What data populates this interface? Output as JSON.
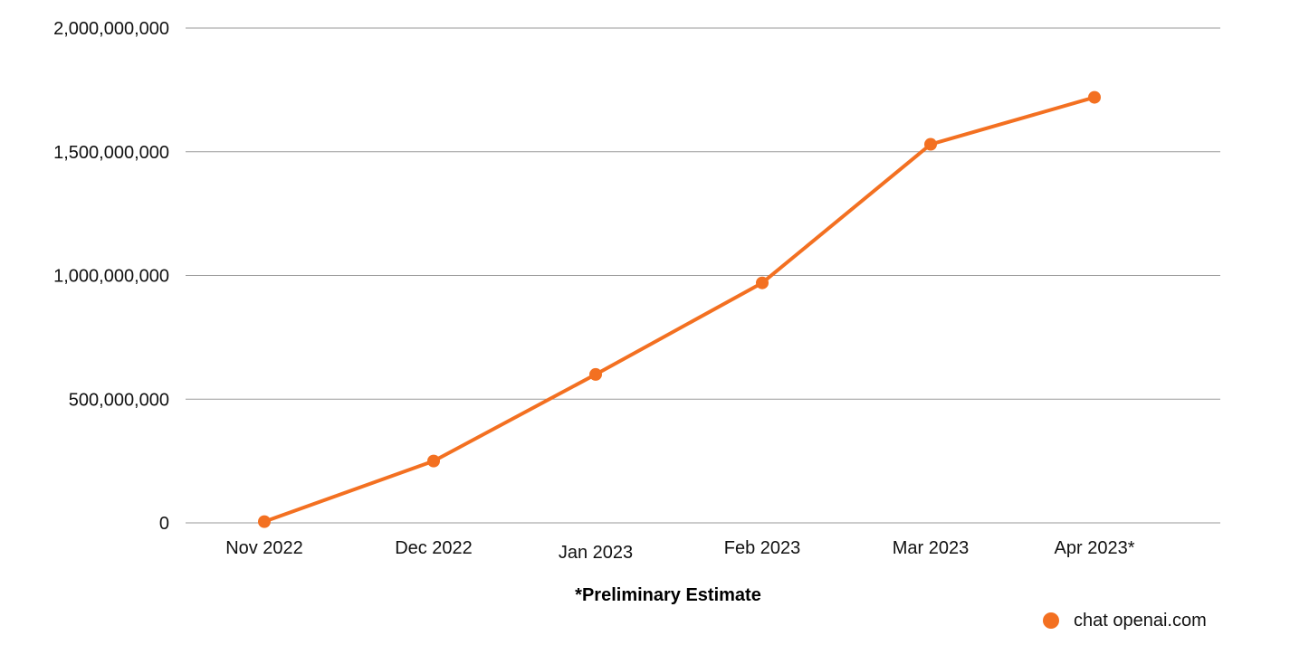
{
  "chart_data": {
    "type": "line",
    "categories": [
      "Nov 2022",
      "Dec 2022",
      "Jan 2023",
      "Feb 2023",
      "Mar 2023",
      "Apr 2023*"
    ],
    "series": [
      {
        "name": "chat openai.com",
        "values": [
          5000000,
          250000000,
          600000000,
          970000000,
          1530000000,
          1720000000
        ]
      }
    ],
    "ylim": [
      0,
      2000000000
    ],
    "yticks": [
      0,
      500000000,
      1000000000,
      1500000000,
      2000000000
    ],
    "ytick_labels": [
      "0",
      "500,000,000",
      "1,000,000,000",
      "1,500,000,000",
      "2,000,000,000"
    ],
    "grid": true,
    "legend_position": "bottom-right",
    "footnote": "*Preliminary Estimate",
    "colors": {
      "series": "#F37021",
      "grid": "#9a9a9a"
    }
  }
}
